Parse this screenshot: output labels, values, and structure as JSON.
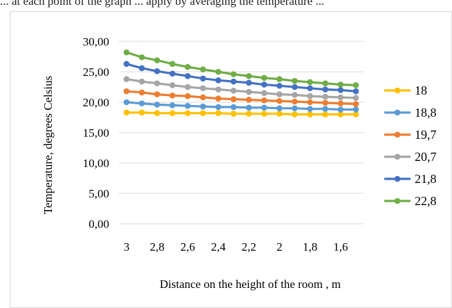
{
  "top_text": "... at each point of the graph ... apply by averaging the temperature ...",
  "chart_data": {
    "type": "line",
    "title": "",
    "xlabel": "Distance  on the height  of the room , m",
    "ylabel": "Temperature,  degrees Celsius",
    "x_tick_labels": [
      "3",
      "2,8",
      "2,6",
      "2,4",
      "2,2",
      "2",
      "1,8",
      "1,6"
    ],
    "y_tick_labels": [
      "0,00",
      "5,00",
      "10,00",
      "15,00",
      "20,00",
      "25,00",
      "30,00"
    ],
    "ylim": [
      0,
      30
    ],
    "grid": true,
    "legend_position": "right",
    "x": [
      3.0,
      2.9,
      2.8,
      2.7,
      2.6,
      2.5,
      2.4,
      2.3,
      2.2,
      2.1,
      2.0,
      1.9,
      1.8,
      1.7,
      1.6,
      1.5
    ],
    "series": [
      {
        "name": "18",
        "color": "#FFC000",
        "values": [
          18.3,
          18.3,
          18.2,
          18.2,
          18.2,
          18.2,
          18.2,
          18.1,
          18.1,
          18.1,
          18.1,
          18.0,
          18.0,
          18.0,
          18.0,
          18.0
        ]
      },
      {
        "name": "18,8",
        "color": "#5B9BD5",
        "values": [
          20.0,
          19.8,
          19.6,
          19.5,
          19.4,
          19.3,
          19.2,
          19.2,
          19.1,
          19.1,
          19.0,
          19.0,
          18.9,
          18.9,
          18.8,
          18.8
        ]
      },
      {
        "name": "19,7",
        "color": "#ED7D31",
        "values": [
          21.8,
          21.6,
          21.3,
          21.1,
          21.0,
          20.8,
          20.6,
          20.5,
          20.4,
          20.3,
          20.2,
          20.1,
          20.0,
          19.9,
          19.8,
          19.7
        ]
      },
      {
        "name": "20,7",
        "color": "#A5A5A5",
        "values": [
          23.8,
          23.4,
          23.1,
          22.8,
          22.5,
          22.3,
          22.1,
          21.9,
          21.7,
          21.5,
          21.3,
          21.2,
          21.0,
          20.9,
          20.8,
          20.7
        ]
      },
      {
        "name": "21,8",
        "color": "#4472C4",
        "values": [
          26.3,
          25.6,
          25.1,
          24.7,
          24.3,
          23.9,
          23.6,
          23.4,
          23.2,
          22.9,
          22.7,
          22.5,
          22.3,
          22.1,
          22.0,
          21.8
        ]
      },
      {
        "name": "22,8",
        "color": "#70AD47",
        "values": [
          28.2,
          27.4,
          26.9,
          26.3,
          25.8,
          25.4,
          25.0,
          24.6,
          24.3,
          24.0,
          23.8,
          23.5,
          23.3,
          23.1,
          22.9,
          22.8
        ]
      }
    ]
  }
}
